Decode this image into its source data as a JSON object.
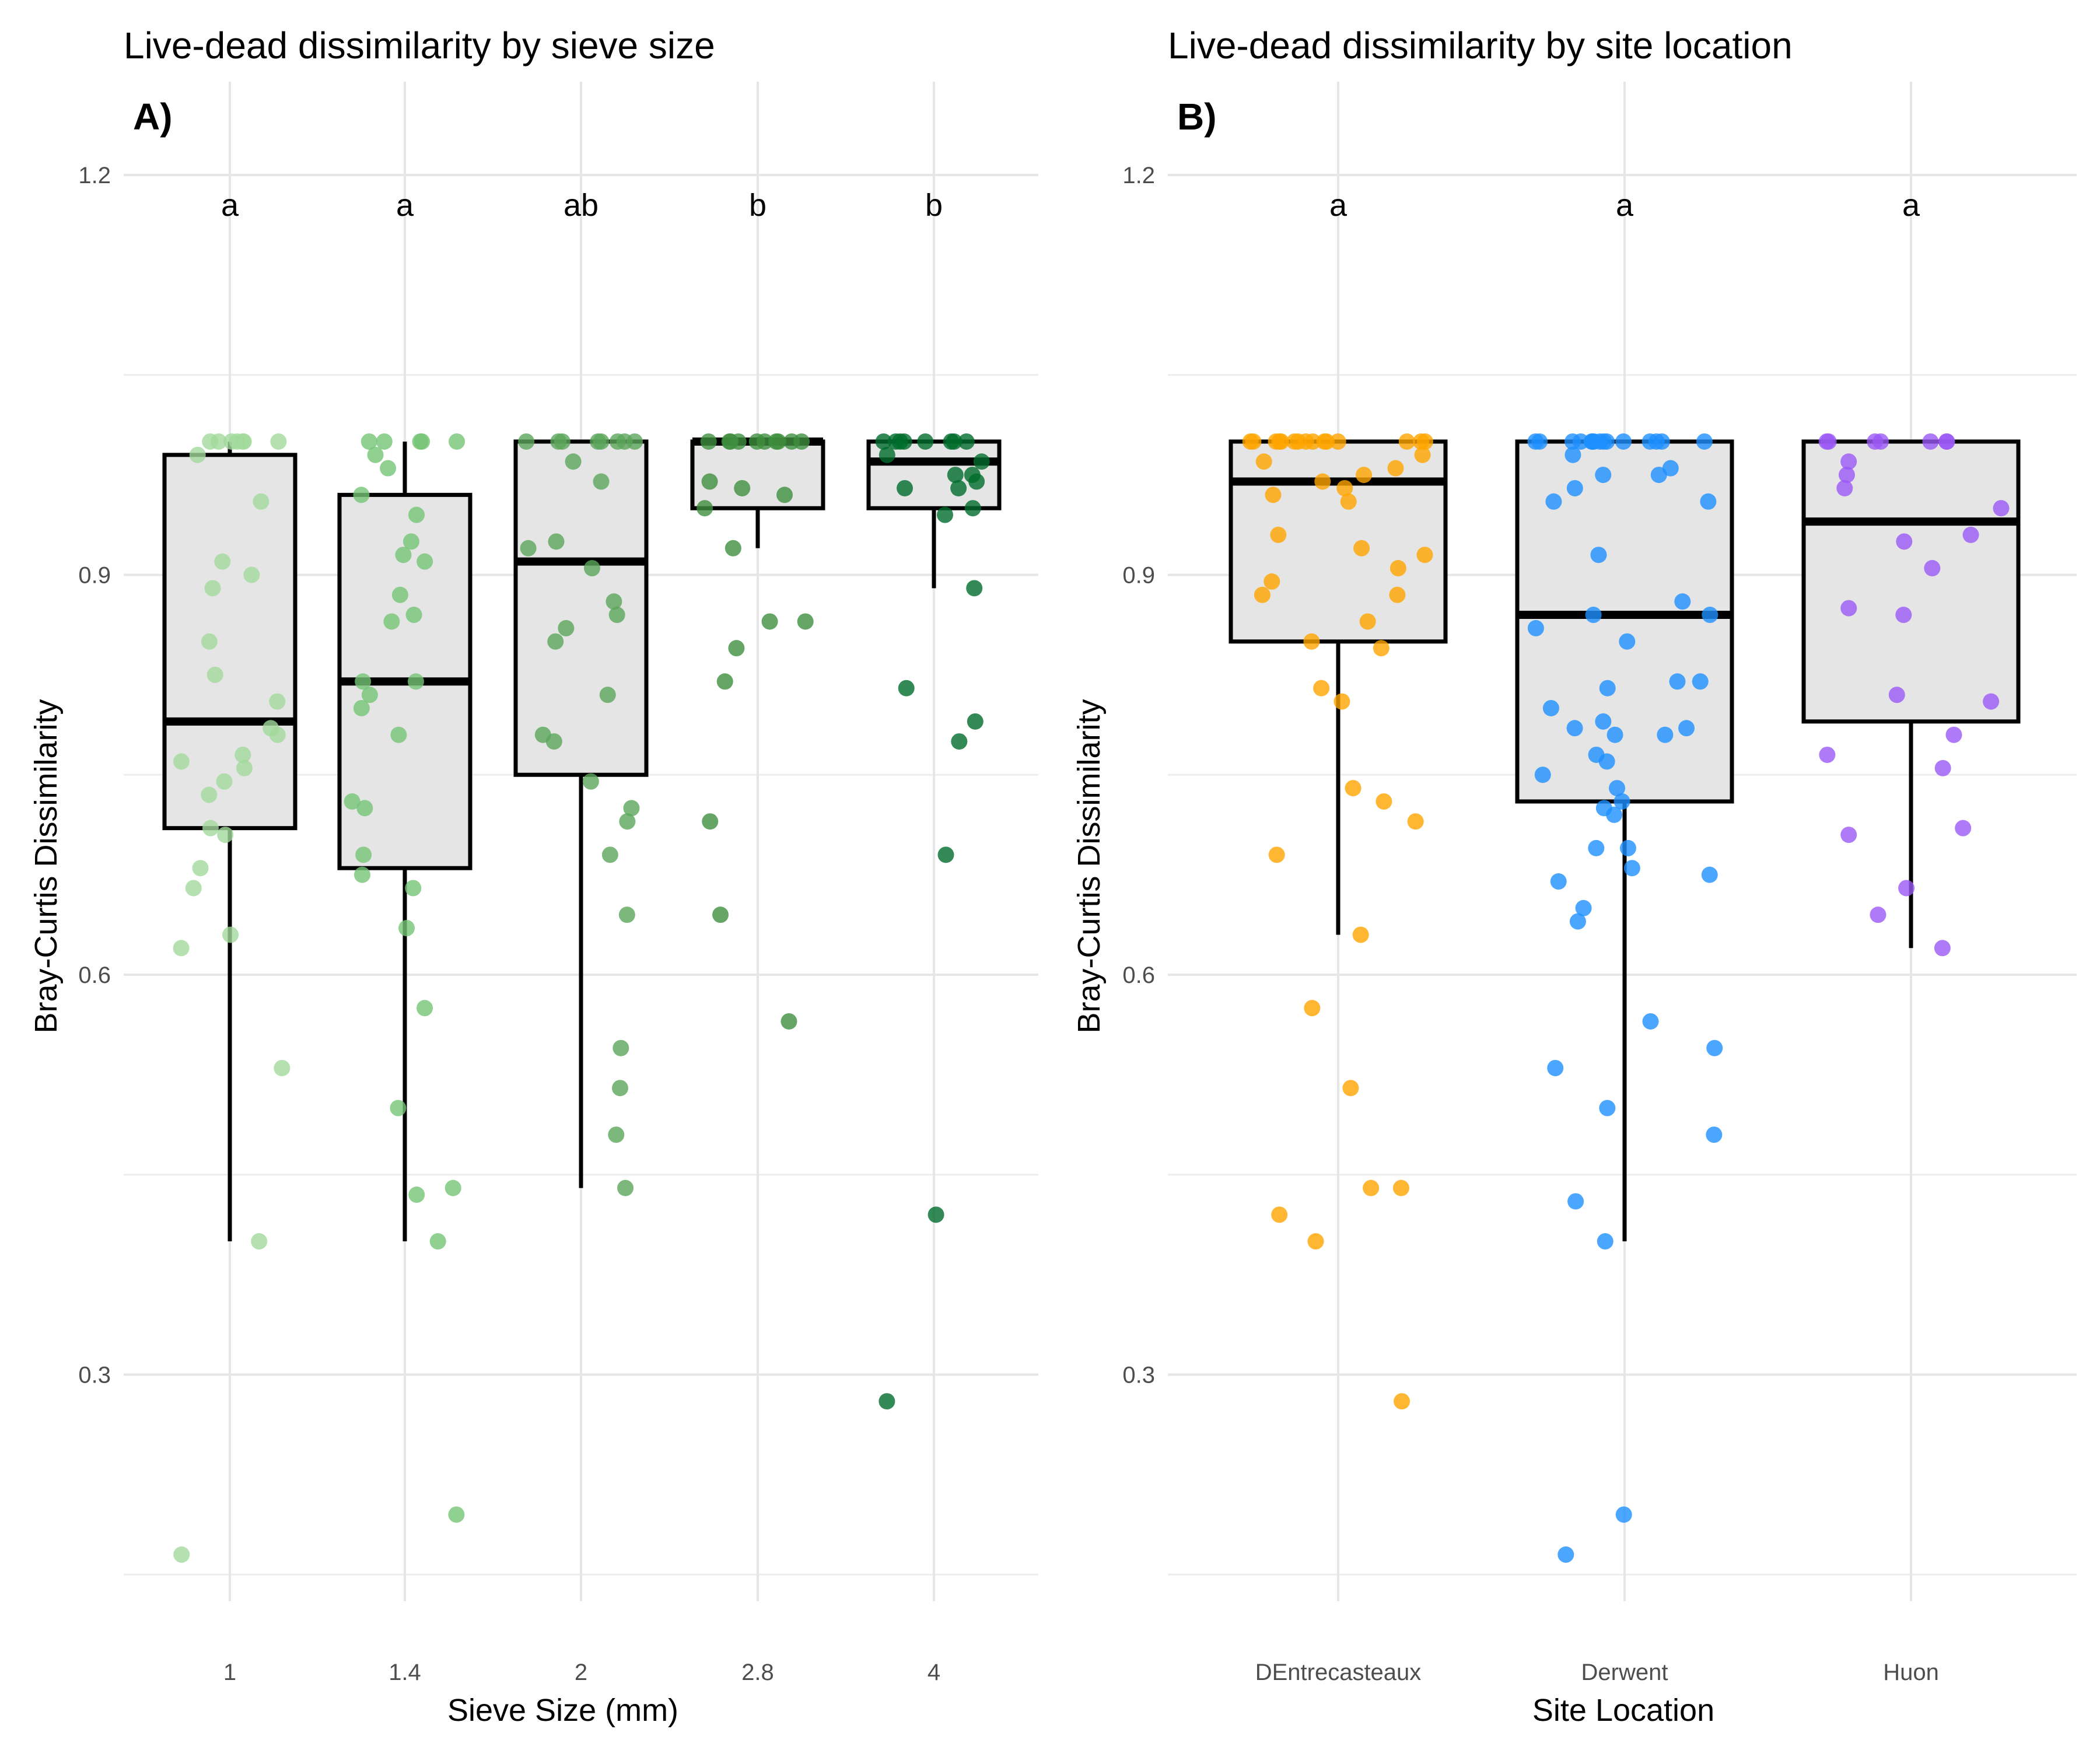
{
  "chart_data": [
    {
      "type": "box",
      "panel_label": "A)",
      "title": "Live-dead dissimilarity by sieve size",
      "xlabel": "Sieve Size (mm)",
      "ylabel": "Bray-Curtis Dissimilarity",
      "ylim": [
        0.13,
        1.27
      ],
      "yticks": [
        "0.3",
        "0.6",
        "0.9",
        "1.2"
      ],
      "grid": true,
      "box_fill": "#e5e5e5",
      "categories": [
        "1",
        "1.4",
        "2",
        "2.8",
        "4"
      ],
      "letters": [
        "a",
        "a",
        "ab",
        "b",
        "b"
      ],
      "colors": [
        "#a1d99b",
        "#74c476",
        "#5ba55b",
        "#3f8f3f",
        "#006d2c"
      ],
      "boxes": [
        {
          "min": 0.4,
          "q1": 0.71,
          "median": 0.79,
          "q3": 0.99,
          "max": 1.0
        },
        {
          "min": 0.4,
          "q1": 0.68,
          "median": 0.82,
          "q3": 0.96,
          "max": 1.0
        },
        {
          "min": 0.44,
          "q1": 0.75,
          "median": 0.91,
          "q3": 1.0,
          "max": 1.0
        },
        {
          "min": 0.92,
          "q1": 0.95,
          "median": 1.0,
          "q3": 1.0,
          "max": 1.0
        },
        {
          "min": 0.89,
          "q1": 0.95,
          "median": 0.985,
          "q3": 1.0,
          "max": 1.0
        }
      ],
      "points": [
        [
          1.0,
          1.0,
          1.0,
          1.0,
          1.0,
          1.0,
          1.0,
          0.99,
          0.955,
          0.91,
          0.9,
          0.89,
          0.85,
          0.825,
          0.805,
          0.785,
          0.78,
          0.765,
          0.76,
          0.755,
          0.745,
          0.735,
          0.71,
          0.705,
          0.68,
          0.665,
          0.63,
          0.62,
          0.53,
          0.4,
          0.165
        ],
        [
          1.0,
          1.0,
          1.0,
          1.0,
          1.0,
          0.99,
          0.98,
          0.96,
          0.945,
          0.925,
          0.915,
          0.91,
          0.885,
          0.87,
          0.865,
          0.82,
          0.82,
          0.81,
          0.8,
          0.78,
          0.73,
          0.725,
          0.69,
          0.675,
          0.665,
          0.635,
          0.575,
          0.5,
          0.44,
          0.435,
          0.4,
          0.195
        ],
        [
          1.0,
          1.0,
          1.0,
          1.0,
          1.0,
          1.0,
          1.0,
          1.0,
          0.985,
          0.97,
          0.925,
          0.92,
          0.905,
          0.88,
          0.87,
          0.86,
          0.85,
          0.81,
          0.78,
          0.775,
          0.745,
          0.725,
          0.715,
          0.69,
          0.645,
          0.545,
          0.515,
          0.48,
          0.44
        ],
        [
          1.0,
          1.0,
          1.0,
          1.0,
          1.0,
          1.0,
          1.0,
          1.0,
          1.0,
          1.0,
          0.97,
          0.965,
          0.96,
          0.95,
          0.92,
          0.865,
          0.865,
          0.845,
          0.82,
          0.715,
          0.645,
          0.565
        ],
        [
          1.0,
          1.0,
          1.0,
          1.0,
          1.0,
          1.0,
          1.0,
          1.0,
          0.99,
          0.985,
          0.975,
          0.975,
          0.97,
          0.965,
          0.965,
          0.95,
          0.945,
          0.89,
          0.815,
          0.79,
          0.775,
          0.69,
          0.42,
          0.28
        ]
      ]
    },
    {
      "type": "box",
      "panel_label": "B)",
      "title": "Live-dead dissimilarity by site location",
      "xlabel": "Site Location",
      "ylabel": "Bray-Curtis Dissimilarity",
      "ylim": [
        0.13,
        1.27
      ],
      "yticks": [
        "0.3",
        "0.6",
        "0.9",
        "1.2"
      ],
      "grid": true,
      "box_fill": "#e5e5e5",
      "categories": [
        "DEntrecasteaux",
        "Derwent",
        "Huon"
      ],
      "letters": [
        "a",
        "a",
        "a"
      ],
      "colors": [
        "#ffa500",
        "#1e90ff",
        "#9b59f5"
      ],
      "boxes": [
        {
          "min": 0.63,
          "q1": 0.85,
          "median": 0.97,
          "q3": 1.0,
          "max": 1.0
        },
        {
          "min": 0.4,
          "q1": 0.73,
          "median": 0.87,
          "q3": 1.0,
          "max": 1.0
        },
        {
          "min": 0.62,
          "q1": 0.79,
          "median": 0.94,
          "q3": 1.0,
          "max": 1.0
        }
      ],
      "points": [
        [
          1.0,
          1.0,
          1.0,
          1.0,
          1.0,
          1.0,
          1.0,
          1.0,
          1.0,
          1.0,
          1.0,
          1.0,
          1.0,
          1.0,
          1.0,
          0.99,
          0.985,
          0.98,
          0.975,
          0.97,
          0.965,
          0.96,
          0.955,
          0.93,
          0.92,
          0.915,
          0.905,
          0.895,
          0.885,
          0.885,
          0.865,
          0.85,
          0.845,
          0.815,
          0.805,
          0.74,
          0.73,
          0.715,
          0.69,
          0.63,
          0.575,
          0.515,
          0.44,
          0.44,
          0.42,
          0.4,
          0.28
        ],
        [
          1.0,
          1.0,
          1.0,
          1.0,
          1.0,
          1.0,
          1.0,
          1.0,
          1.0,
          1.0,
          1.0,
          1.0,
          1.0,
          1.0,
          1.0,
          0.99,
          0.98,
          0.975,
          0.975,
          0.965,
          0.955,
          0.955,
          0.915,
          0.88,
          0.87,
          0.87,
          0.86,
          0.85,
          0.82,
          0.82,
          0.815,
          0.8,
          0.79,
          0.785,
          0.785,
          0.78,
          0.78,
          0.765,
          0.76,
          0.75,
          0.74,
          0.73,
          0.725,
          0.72,
          0.695,
          0.695,
          0.68,
          0.675,
          0.67,
          0.65,
          0.64,
          0.565,
          0.545,
          0.53,
          0.5,
          0.48,
          0.43,
          0.4,
          0.195,
          0.165
        ],
        [
          1.0,
          1.0,
          1.0,
          1.0,
          1.0,
          1.0,
          1.0,
          0.985,
          0.975,
          0.965,
          0.95,
          0.93,
          0.925,
          0.905,
          0.875,
          0.87,
          0.81,
          0.805,
          0.78,
          0.765,
          0.755,
          0.71,
          0.705,
          0.665,
          0.645,
          0.62
        ]
      ]
    }
  ]
}
